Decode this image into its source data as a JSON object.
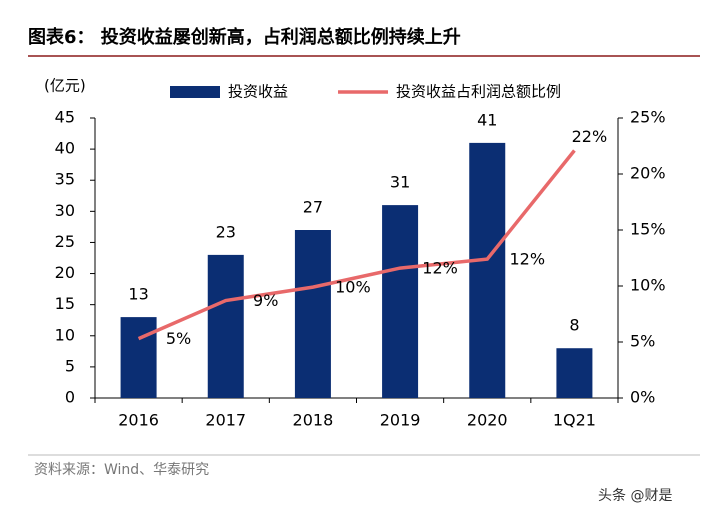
{
  "chart_data": {
    "type": "bar-line",
    "title": "图表6：  投资收益屡创新高，占利润总额比例持续上升",
    "y_axis_label": "(亿元)",
    "categories": [
      "2016",
      "2017",
      "2018",
      "2019",
      "2020",
      "1Q21"
    ],
    "series": [
      {
        "name": "投资收益",
        "type": "bar",
        "color": "#0b2e73",
        "values": [
          13,
          23,
          27,
          31,
          41,
          8
        ]
      },
      {
        "name": "投资收益占利润总额比例",
        "type": "line",
        "axis": "y2",
        "color": "#e8696a",
        "values": [
          5.3,
          8.7,
          9.9,
          11.6,
          12.4,
          22.1
        ],
        "value_labels": [
          "5%",
          "9%",
          "10%",
          "12%",
          "12%",
          "22%"
        ]
      }
    ],
    "ylim": [
      0,
      45
    ],
    "yticks": [
      0,
      5,
      10,
      15,
      20,
      25,
      30,
      35,
      40,
      45
    ],
    "y2lim": [
      0,
      25
    ],
    "y2ticks": [
      {
        "value": 0,
        "label": "0%"
      },
      {
        "value": 5,
        "label": "5%"
      },
      {
        "value": 10,
        "label": "10%"
      },
      {
        "value": 15,
        "label": "15%"
      },
      {
        "value": 20,
        "label": "20%"
      },
      {
        "value": 25,
        "label": "25%"
      }
    ],
    "source": "资料来源：Wind、华泰研究",
    "watermark": "头条 @财是"
  }
}
